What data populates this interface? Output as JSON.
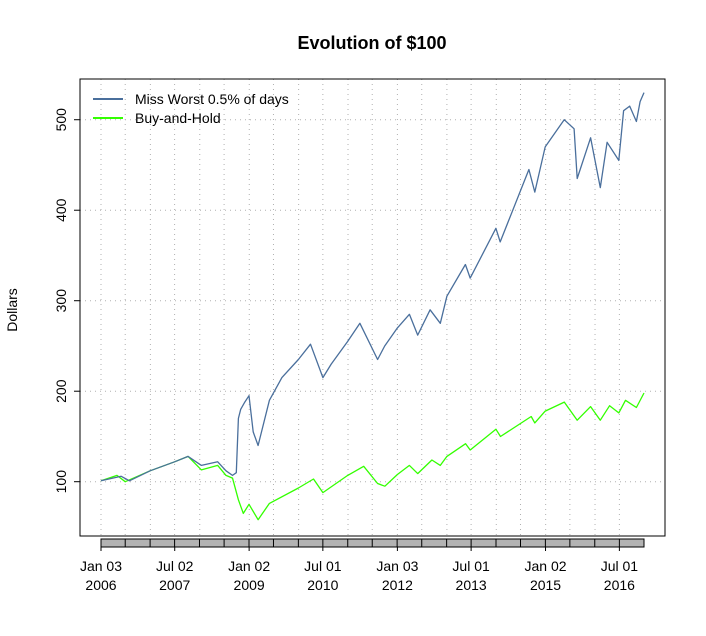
{
  "chart_data": {
    "type": "line",
    "title": "Evolution of $100",
    "xlabel": "",
    "ylabel": "Dollars",
    "ylim": [
      40,
      545
    ],
    "y_ticks": [
      100,
      200,
      300,
      400,
      500
    ],
    "x_range": [
      "2006-01-03",
      "2016-12-30"
    ],
    "x_ticks": [
      {
        "date": "2006-01-03",
        "label": [
          "Jan 03",
          "2006"
        ]
      },
      {
        "date": "2007-07-02",
        "label": [
          "Jul 02",
          "2007"
        ]
      },
      {
        "date": "2009-01-02",
        "label": [
          "Jan 02",
          "2009"
        ]
      },
      {
        "date": "2010-07-01",
        "label": [
          "Jul 01",
          "2010"
        ]
      },
      {
        "date": "2012-01-03",
        "label": [
          "Jan 03",
          "2012"
        ]
      },
      {
        "date": "2013-07-01",
        "label": [
          "Jul 01",
          "2013"
        ]
      },
      {
        "date": "2015-01-02",
        "label": [
          "Jan 02",
          "2015"
        ]
      },
      {
        "date": "2016-07-01",
        "label": [
          "Jul 01",
          "2016"
        ]
      }
    ],
    "grid": true,
    "legend_position": "top-left",
    "series": [
      {
        "name": "Miss Worst 0.5% of days",
        "color": "#4a6f9c",
        "points": [
          [
            "2006-01-03",
            101
          ],
          [
            "2006-06-01",
            106
          ],
          [
            "2006-08-01",
            101
          ],
          [
            "2007-01-01",
            112
          ],
          [
            "2007-07-01",
            122
          ],
          [
            "2007-10-09",
            128
          ],
          [
            "2008-01-15",
            118
          ],
          [
            "2008-05-15",
            122
          ],
          [
            "2008-07-15",
            112
          ],
          [
            "2008-09-01",
            107
          ],
          [
            "2008-09-29",
            110
          ],
          [
            "2008-10-15",
            170
          ],
          [
            "2008-11-01",
            180
          ],
          [
            "2008-12-01",
            188
          ],
          [
            "2009-01-01",
            195
          ],
          [
            "2009-02-01",
            155
          ],
          [
            "2009-03-09",
            140
          ],
          [
            "2009-06-01",
            190
          ],
          [
            "2009-09-01",
            215
          ],
          [
            "2010-01-01",
            235
          ],
          [
            "2010-04-01",
            252
          ],
          [
            "2010-07-01",
            215
          ],
          [
            "2010-09-01",
            230
          ],
          [
            "2011-01-01",
            255
          ],
          [
            "2011-04-01",
            275
          ],
          [
            "2011-08-10",
            235
          ],
          [
            "2011-10-01",
            250
          ],
          [
            "2012-01-03",
            270
          ],
          [
            "2012-04-01",
            285
          ],
          [
            "2012-06-01",
            262
          ],
          [
            "2012-09-01",
            290
          ],
          [
            "2012-11-15",
            275
          ],
          [
            "2013-01-03",
            305
          ],
          [
            "2013-05-20",
            340
          ],
          [
            "2013-06-24",
            325
          ],
          [
            "2013-12-31",
            380
          ],
          [
            "2014-02-01",
            365
          ],
          [
            "2014-09-01",
            445
          ],
          [
            "2014-10-15",
            420
          ],
          [
            "2014-12-31",
            470
          ],
          [
            "2015-05-20",
            500
          ],
          [
            "2015-08-01",
            490
          ],
          [
            "2015-08-24",
            435
          ],
          [
            "2015-12-01",
            480
          ],
          [
            "2016-02-11",
            425
          ],
          [
            "2016-04-01",
            475
          ],
          [
            "2016-06-27",
            455
          ],
          [
            "2016-08-01",
            510
          ],
          [
            "2016-09-15",
            515
          ],
          [
            "2016-11-04",
            498
          ],
          [
            "2016-12-01",
            520
          ],
          [
            "2016-12-30",
            530
          ]
        ]
      },
      {
        "name": "Buy-and-Hold",
        "color": "#33ff00",
        "points": [
          [
            "2006-01-03",
            101
          ],
          [
            "2006-05-01",
            107
          ],
          [
            "2006-07-01",
            100
          ],
          [
            "2007-01-01",
            112
          ],
          [
            "2007-07-01",
            122
          ],
          [
            "2007-10-09",
            128
          ],
          [
            "2008-01-15",
            113
          ],
          [
            "2008-05-15",
            118
          ],
          [
            "2008-07-15",
            107
          ],
          [
            "2008-09-01",
            104
          ],
          [
            "2008-10-15",
            80
          ],
          [
            "2008-11-20",
            65
          ],
          [
            "2009-01-01",
            75
          ],
          [
            "2009-03-09",
            58
          ],
          [
            "2009-06-01",
            76
          ],
          [
            "2010-01-01",
            93
          ],
          [
            "2010-04-23",
            103
          ],
          [
            "2010-07-01",
            88
          ],
          [
            "2011-01-01",
            107
          ],
          [
            "2011-04-29",
            117
          ],
          [
            "2011-08-10",
            98
          ],
          [
            "2011-10-03",
            95
          ],
          [
            "2012-01-03",
            108
          ],
          [
            "2012-04-01",
            118
          ],
          [
            "2012-06-01",
            109
          ],
          [
            "2012-09-14",
            124
          ],
          [
            "2012-11-15",
            118
          ],
          [
            "2013-01-03",
            128
          ],
          [
            "2013-05-21",
            142
          ],
          [
            "2013-06-24",
            135
          ],
          [
            "2013-12-31",
            158
          ],
          [
            "2014-02-03",
            150
          ],
          [
            "2014-09-18",
            172
          ],
          [
            "2014-10-15",
            165
          ],
          [
            "2014-12-31",
            178
          ],
          [
            "2015-05-21",
            188
          ],
          [
            "2015-08-24",
            168
          ],
          [
            "2015-12-01",
            183
          ],
          [
            "2016-02-11",
            168
          ],
          [
            "2016-04-20",
            184
          ],
          [
            "2016-06-27",
            176
          ],
          [
            "2016-08-15",
            190
          ],
          [
            "2016-11-04",
            182
          ],
          [
            "2016-12-30",
            198
          ]
        ]
      }
    ]
  }
}
